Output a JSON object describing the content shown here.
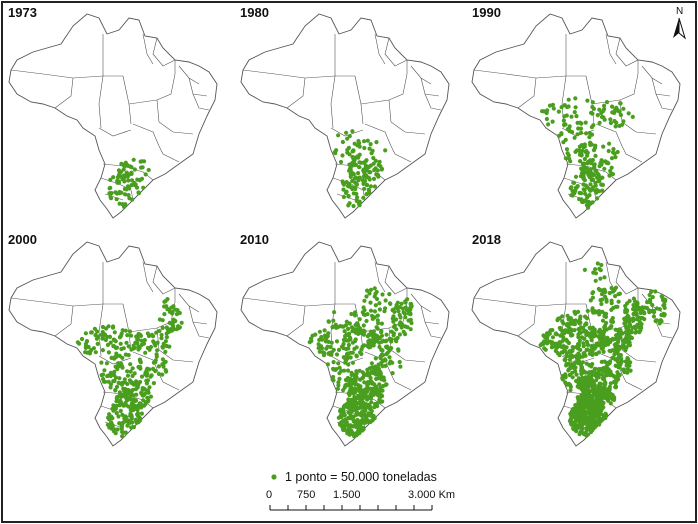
{
  "maps": [
    {
      "year": "1973",
      "dots": 80
    },
    {
      "year": "1980",
      "dots": 150
    },
    {
      "year": "1990",
      "dots": 260
    },
    {
      "year": "2000",
      "dots": 420
    },
    {
      "year": "2010",
      "dots": 700
    },
    {
      "year": "2018",
      "dots": 1100
    }
  ],
  "legend": {
    "label": "1 ponto = 50.000 toneladas",
    "dot_color": "#4a9e1f"
  },
  "scale_bar": {
    "ticks": [
      "0",
      "750",
      "1.500",
      "3.000 Km"
    ]
  },
  "north_arrow": {
    "label": "N"
  },
  "colors": {
    "dots": "#4a9e1f",
    "boundaries": "#555555",
    "frame": "#222222"
  }
}
